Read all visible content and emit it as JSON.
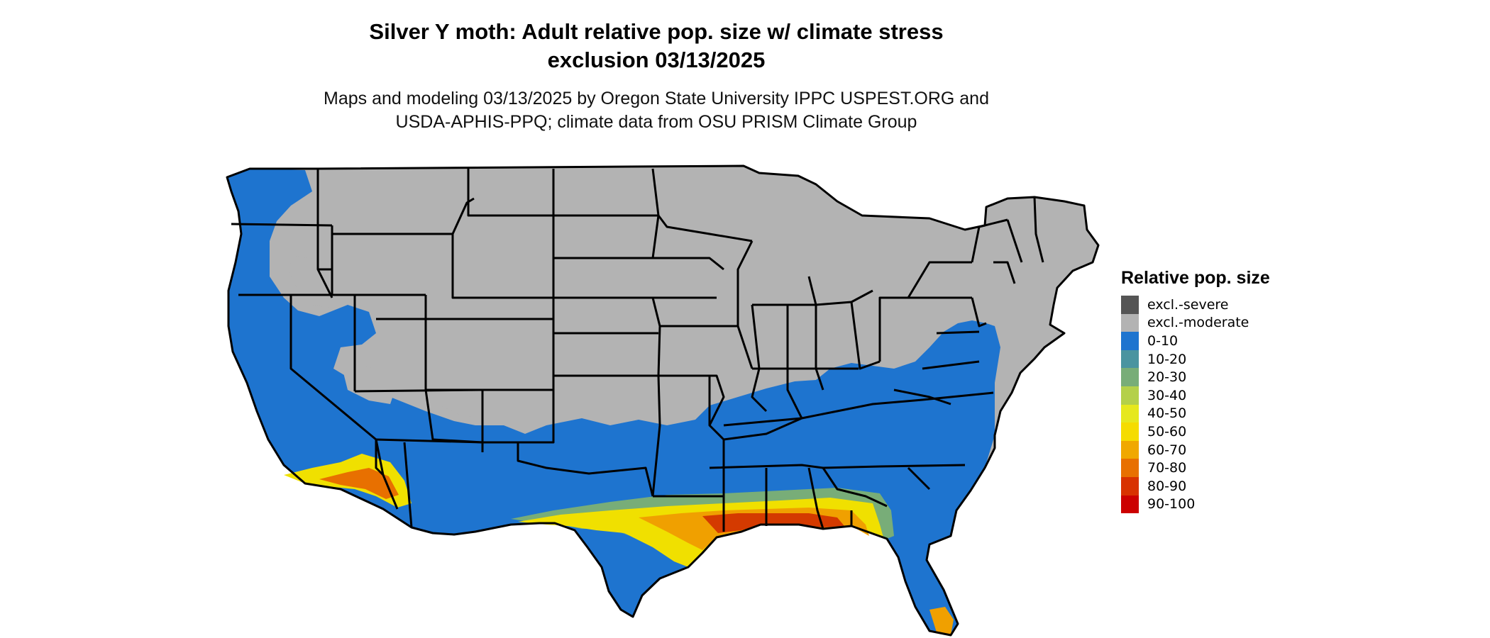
{
  "map": {
    "title_line1": "Silver Y moth: Adult relative pop. size w/ climate stress",
    "title_line2": "exclusion 03/13/2025",
    "subtitle_line1": "Maps and modeling 03/13/2025 by Oregon State University IPPC USPEST.ORG and",
    "subtitle_line2": "USDA-APHIS-PPQ; climate data from OSU PRISM Climate Group",
    "region": "Contiguous United States",
    "colors": {
      "excl_moderate": "#b3b3b3",
      "low": "#1e74cf",
      "band_yellow": "#f0e000",
      "band_orange": "#f0a000",
      "band_red": "#d43a00",
      "border": "#000000"
    }
  },
  "legend": {
    "title": "Relative pop. size",
    "items": [
      {
        "label": "excl.-severe",
        "color": "#555555"
      },
      {
        "label": "excl.-moderate",
        "color": "#b3b3b3"
      },
      {
        "label": "0-10",
        "color": "#1e74cf"
      },
      {
        "label": "10-20",
        "color": "#4a94a0"
      },
      {
        "label": "20-30",
        "color": "#78ad78"
      },
      {
        "label": "30-40",
        "color": "#b4d04a"
      },
      {
        "label": "40-50",
        "color": "#e6e81e"
      },
      {
        "label": "50-60",
        "color": "#f5dc00"
      },
      {
        "label": "60-70",
        "color": "#f0a800"
      },
      {
        "label": "70-80",
        "color": "#e87000"
      },
      {
        "label": "80-90",
        "color": "#d83200"
      },
      {
        "label": "90-100",
        "color": "#cc0000"
      }
    ]
  }
}
